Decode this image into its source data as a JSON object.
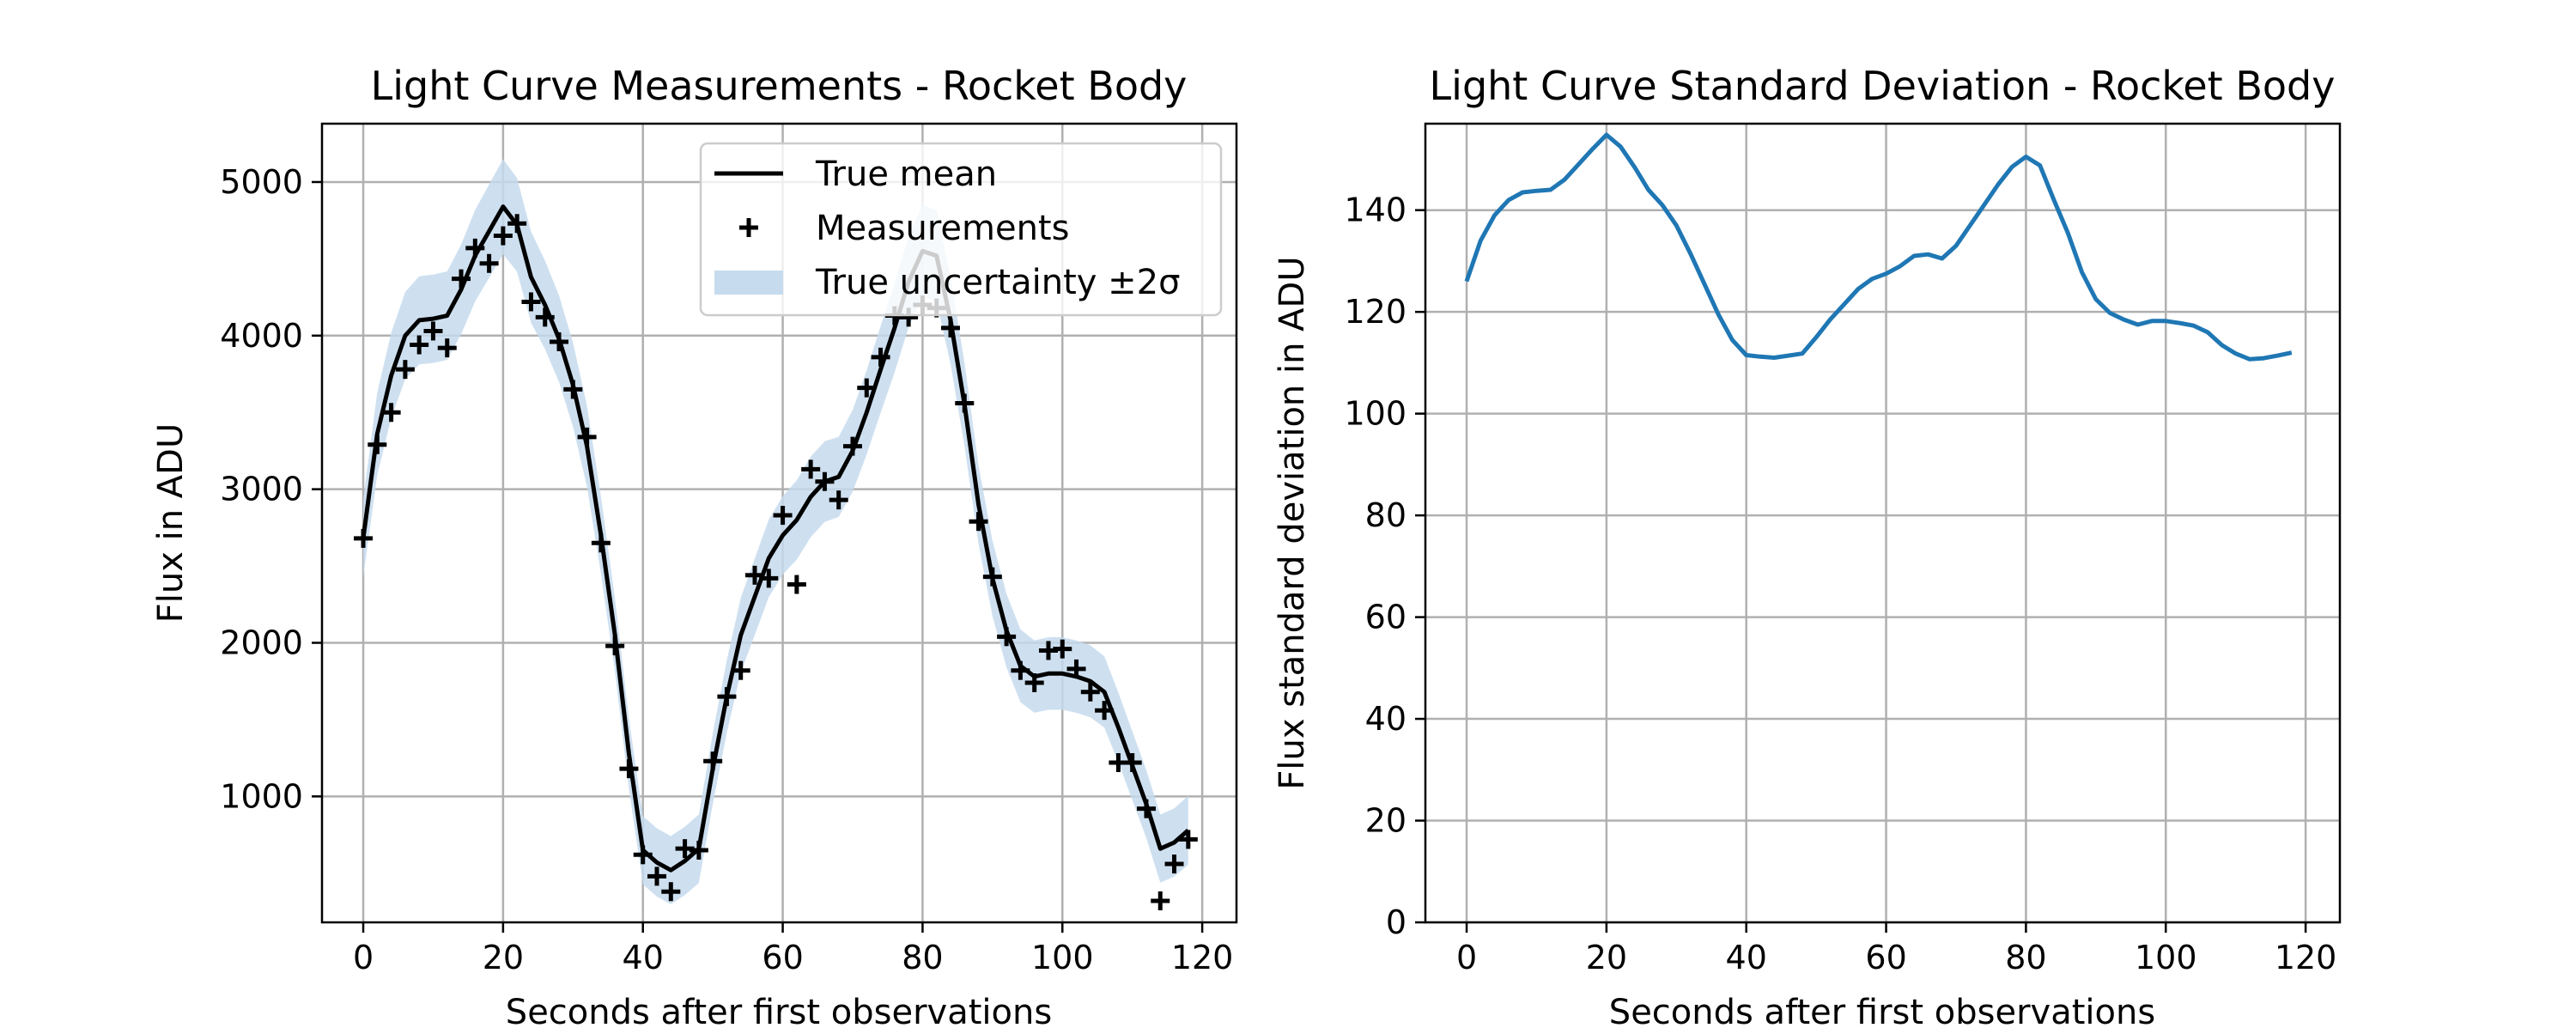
{
  "chart_data": [
    {
      "type": "line",
      "title": "Light Curve Measurements - Rocket Body",
      "xlabel": "Seconds after first observations",
      "ylabel": "Flux in ADU",
      "xlim": [
        -5.9,
        124.9
      ],
      "ylim": [
        180,
        5380
      ],
      "xticks": [
        "0",
        "20",
        "40",
        "60",
        "80",
        "100",
        "120"
      ],
      "yticks": [
        "1000",
        "2000",
        "3000",
        "4000",
        "5000"
      ],
      "grid": true,
      "legend_position": "top-right",
      "legend": [
        "True mean",
        "Measurements",
        "True uncertainty ±2σ"
      ],
      "colors": {
        "mean": "#000000",
        "measurements": "#000000",
        "band": "#c6dbed"
      },
      "x": [
        0,
        2,
        4,
        6,
        8,
        10,
        12,
        14,
        16,
        18,
        20,
        22,
        24,
        26,
        28,
        30,
        32,
        34,
        36,
        38,
        40,
        42,
        44,
        46,
        48,
        50,
        52,
        54,
        56,
        58,
        60,
        62,
        64,
        66,
        68,
        70,
        72,
        74,
        76,
        78,
        80,
        82,
        84,
        86,
        88,
        90,
        92,
        94,
        96,
        98,
        100,
        102,
        104,
        106,
        108,
        110,
        112,
        114,
        116,
        118
      ],
      "series": [
        {
          "name": "True mean",
          "values": [
            2680,
            3360,
            3740,
            4000,
            4100,
            4110,
            4130,
            4300,
            4520,
            4680,
            4840,
            4720,
            4380,
            4200,
            3980,
            3680,
            3280,
            2700,
            2050,
            1280,
            650,
            570,
            520,
            580,
            660,
            1180,
            1650,
            2050,
            2300,
            2550,
            2700,
            2800,
            2950,
            3050,
            3080,
            3250,
            3500,
            3780,
            4050,
            4350,
            4550,
            4520,
            4100,
            3550,
            2900,
            2420,
            2080,
            1850,
            1780,
            1800,
            1800,
            1780,
            1750,
            1680,
            1450,
            1200,
            950,
            660,
            700,
            780
          ]
        },
        {
          "name": "Measurements",
          "type": "scatter",
          "values": [
            2680,
            3290,
            3500,
            3780,
            3940,
            4030,
            3920,
            4370,
            4570,
            4470,
            4650,
            4730,
            4220,
            4120,
            3960,
            3650,
            3340,
            2650,
            1980,
            1180,
            620,
            480,
            380,
            660,
            650,
            1230,
            1650,
            1820,
            2440,
            2420,
            2830,
            2380,
            3130,
            3050,
            2930,
            3280,
            3660,
            3860,
            4130,
            4120,
            4200,
            4180,
            4050,
            3560,
            2790,
            2430,
            2040,
            1820,
            1740,
            1950,
            1960,
            1830,
            1680,
            1560,
            1220,
            1220,
            920,
            320,
            560,
            720
          ]
        },
        {
          "name": "True uncertainty ±2σ",
          "type": "area",
          "sigma": [
            126,
            134,
            139,
            142,
            143.5,
            143.8,
            144,
            146,
            149,
            152,
            154.8,
            152.5,
            148.5,
            144,
            141,
            137,
            131.5,
            125.5,
            119.5,
            114.5,
            111.5,
            111.2,
            111,
            111.4,
            111.8,
            115,
            118.5,
            121.5,
            124.5,
            126.5,
            127.5,
            129,
            131,
            131.3,
            130.5,
            133,
            137,
            141,
            145,
            148.5,
            150.5,
            148.8,
            142,
            135.5,
            127.8,
            122.5,
            119.8,
            118.5,
            117.5,
            118.2,
            118.2,
            117.8,
            117.3,
            116,
            113.5,
            111.8,
            110.7,
            110.9,
            111.4,
            112
          ]
        }
      ]
    },
    {
      "type": "line",
      "title": "Light Curve Standard Deviation - Rocket Body",
      "xlabel": "Seconds after first observations",
      "ylabel": "Flux standard deviation in ADU",
      "xlim": [
        -5.9,
        124.9
      ],
      "ylim": [
        0,
        157
      ],
      "xticks": [
        "0",
        "20",
        "40",
        "60",
        "80",
        "100",
        "120"
      ],
      "yticks": [
        "0",
        "20",
        "40",
        "60",
        "80",
        "100",
        "120",
        "140"
      ],
      "grid": true,
      "colors": {
        "line": "#1f77b4"
      },
      "x": [
        0,
        2,
        4,
        6,
        8,
        10,
        12,
        14,
        16,
        18,
        20,
        22,
        24,
        26,
        28,
        30,
        32,
        34,
        36,
        38,
        40,
        42,
        44,
        46,
        48,
        50,
        52,
        54,
        56,
        58,
        60,
        62,
        64,
        66,
        68,
        70,
        72,
        74,
        76,
        78,
        80,
        82,
        84,
        86,
        88,
        90,
        92,
        94,
        96,
        98,
        100,
        102,
        104,
        106,
        108,
        110,
        112,
        114,
        116,
        118
      ],
      "values": [
        126,
        134,
        139,
        142,
        143.5,
        143.8,
        144,
        146,
        149,
        152,
        154.8,
        152.5,
        148.5,
        144,
        141,
        137,
        131.5,
        125.5,
        119.5,
        114.5,
        111.5,
        111.2,
        111,
        111.4,
        111.8,
        115,
        118.5,
        121.5,
        124.5,
        126.5,
        127.5,
        129,
        131,
        131.3,
        130.5,
        133,
        137,
        141,
        145,
        148.5,
        150.5,
        148.8,
        142,
        135.5,
        127.8,
        122.5,
        119.8,
        118.5,
        117.5,
        118.2,
        118.2,
        117.8,
        117.3,
        116,
        113.5,
        111.8,
        110.7,
        110.9,
        111.4,
        112
      ]
    }
  ]
}
